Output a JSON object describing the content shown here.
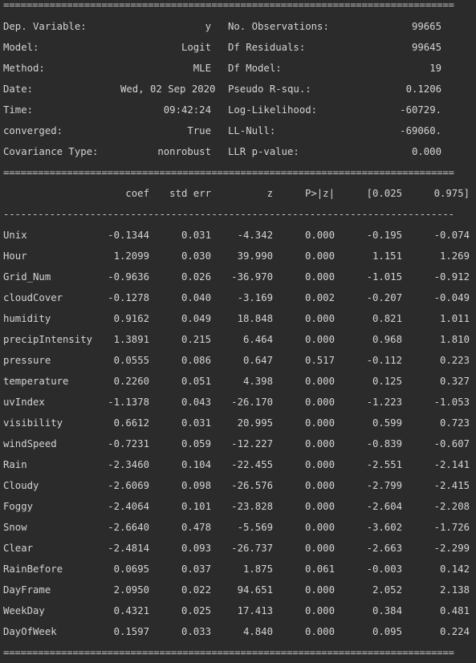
{
  "separators": {
    "double": "==============================================================================",
    "single": "------------------------------------------------------------------------------"
  },
  "header": {
    "left": [
      {
        "label": "Dep. Variable:",
        "value": "y"
      },
      {
        "label": "Model:",
        "value": "Logit"
      },
      {
        "label": "Method:",
        "value": "MLE"
      },
      {
        "label": "Date:",
        "value": "Wed, 02 Sep 2020"
      },
      {
        "label": "Time:",
        "value": "09:42:24"
      },
      {
        "label": "converged:",
        "value": "True"
      },
      {
        "label": "Covariance Type:",
        "value": "nonrobust"
      }
    ],
    "right": [
      {
        "label": "No. Observations:",
        "value": "99665"
      },
      {
        "label": "Df Residuals:",
        "value": "99645"
      },
      {
        "label": "Df Model:",
        "value": "19"
      },
      {
        "label": "Pseudo R-squ.:",
        "value": "0.1206"
      },
      {
        "label": "Log-Likelihood:",
        "value": "-60729."
      },
      {
        "label": "LL-Null:",
        "value": "-69060."
      },
      {
        "label": "LLR p-value:",
        "value": "0.000"
      }
    ]
  },
  "columns": [
    "coef",
    "std err",
    "z",
    "P>|z|",
    "[0.025",
    "0.975]"
  ],
  "rows": [
    [
      "Unix",
      "-0.1344",
      "0.031",
      "-4.342",
      "0.000",
      "-0.195",
      "-0.074"
    ],
    [
      "Hour",
      "1.2099",
      "0.030",
      "39.990",
      "0.000",
      "1.151",
      "1.269"
    ],
    [
      "Grid_Num",
      "-0.9636",
      "0.026",
      "-36.970",
      "0.000",
      "-1.015",
      "-0.912"
    ],
    [
      "cloudCover",
      "-0.1278",
      "0.040",
      "-3.169",
      "0.002",
      "-0.207",
      "-0.049"
    ],
    [
      "humidity",
      "0.9162",
      "0.049",
      "18.848",
      "0.000",
      "0.821",
      "1.011"
    ],
    [
      "precipIntensity",
      "1.3891",
      "0.215",
      "6.464",
      "0.000",
      "0.968",
      "1.810"
    ],
    [
      "pressure",
      "0.0555",
      "0.086",
      "0.647",
      "0.517",
      "-0.112",
      "0.223"
    ],
    [
      "temperature",
      "0.2260",
      "0.051",
      "4.398",
      "0.000",
      "0.125",
      "0.327"
    ],
    [
      "uvIndex",
      "-1.1378",
      "0.043",
      "-26.170",
      "0.000",
      "-1.223",
      "-1.053"
    ],
    [
      "visibility",
      "0.6612",
      "0.031",
      "20.995",
      "0.000",
      "0.599",
      "0.723"
    ],
    [
      "windSpeed",
      "-0.7231",
      "0.059",
      "-12.227",
      "0.000",
      "-0.839",
      "-0.607"
    ],
    [
      "Rain",
      "-2.3460",
      "0.104",
      "-22.455",
      "0.000",
      "-2.551",
      "-2.141"
    ],
    [
      "Cloudy",
      "-2.6069",
      "0.098",
      "-26.576",
      "0.000",
      "-2.799",
      "-2.415"
    ],
    [
      "Foggy",
      "-2.4064",
      "0.101",
      "-23.828",
      "0.000",
      "-2.604",
      "-2.208"
    ],
    [
      "Snow",
      "-2.6640",
      "0.478",
      "-5.569",
      "0.000",
      "-3.602",
      "-1.726"
    ],
    [
      "Clear",
      "-2.4814",
      "0.093",
      "-26.737",
      "0.000",
      "-2.663",
      "-2.299"
    ],
    [
      "RainBefore",
      "0.0695",
      "0.037",
      "1.875",
      "0.061",
      "-0.003",
      "0.142"
    ],
    [
      "DayFrame",
      "2.0950",
      "0.022",
      "94.651",
      "0.000",
      "2.052",
      "2.138"
    ],
    [
      "WeekDay",
      "0.4321",
      "0.025",
      "17.413",
      "0.000",
      "0.384",
      "0.481"
    ],
    [
      "DayOfWeek",
      "0.1597",
      "0.033",
      "4.840",
      "0.000",
      "0.095",
      "0.224"
    ]
  ]
}
